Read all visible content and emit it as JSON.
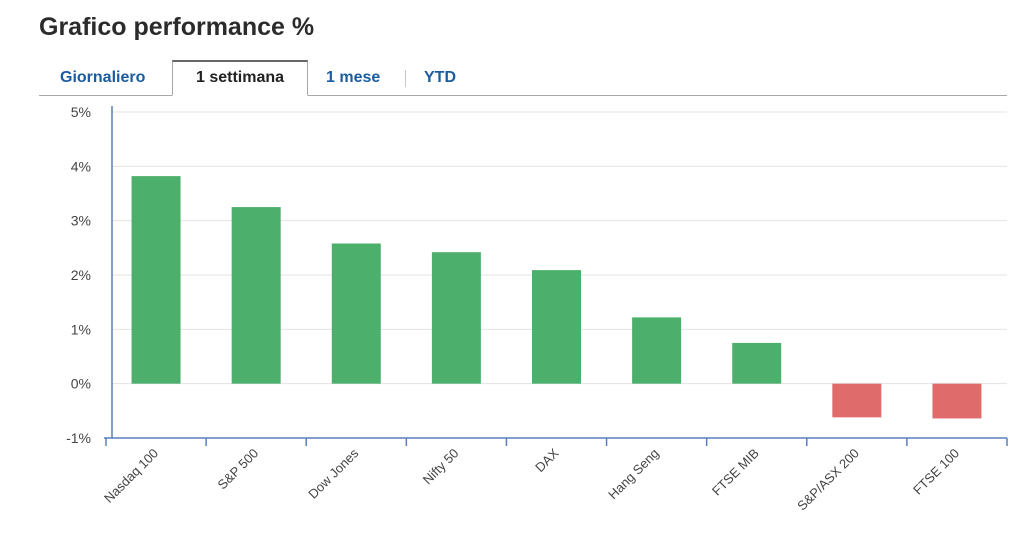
{
  "header": {
    "title": "Grafico performance %"
  },
  "tabs": [
    {
      "label": "Giornaliero",
      "active": false
    },
    {
      "label": "1 settimana",
      "active": true
    },
    {
      "label": "1 mese",
      "active": false
    },
    {
      "label": "YTD",
      "active": false
    }
  ],
  "colors": {
    "positive": "#4caf6c",
    "negative": "#e06b6b",
    "tab_link": "#1b5c9e",
    "axis": "#5b7fb8",
    "grid": "#e3e3e3"
  },
  "chart_data": {
    "type": "bar",
    "title": "",
    "xlabel": "",
    "ylabel": "",
    "categories": [
      "Nasdaq 100",
      "S&P 500",
      "Dow Jones",
      "Nifty 50",
      "DAX",
      "Hang Seng",
      "FTSE MIB",
      "S&P/ASX 200",
      "FTSE 100"
    ],
    "values": [
      3.82,
      3.25,
      2.58,
      2.42,
      2.09,
      1.22,
      0.75,
      -0.62,
      -0.64
    ],
    "ylim": [
      -1,
      5
    ],
    "yticks": [
      5,
      4,
      3,
      2,
      1,
      0,
      -1
    ],
    "ytick_labels": [
      "5%",
      "4%",
      "3%",
      "2%",
      "1%",
      "0%",
      "-1%"
    ],
    "grid": true,
    "legend": "none"
  }
}
